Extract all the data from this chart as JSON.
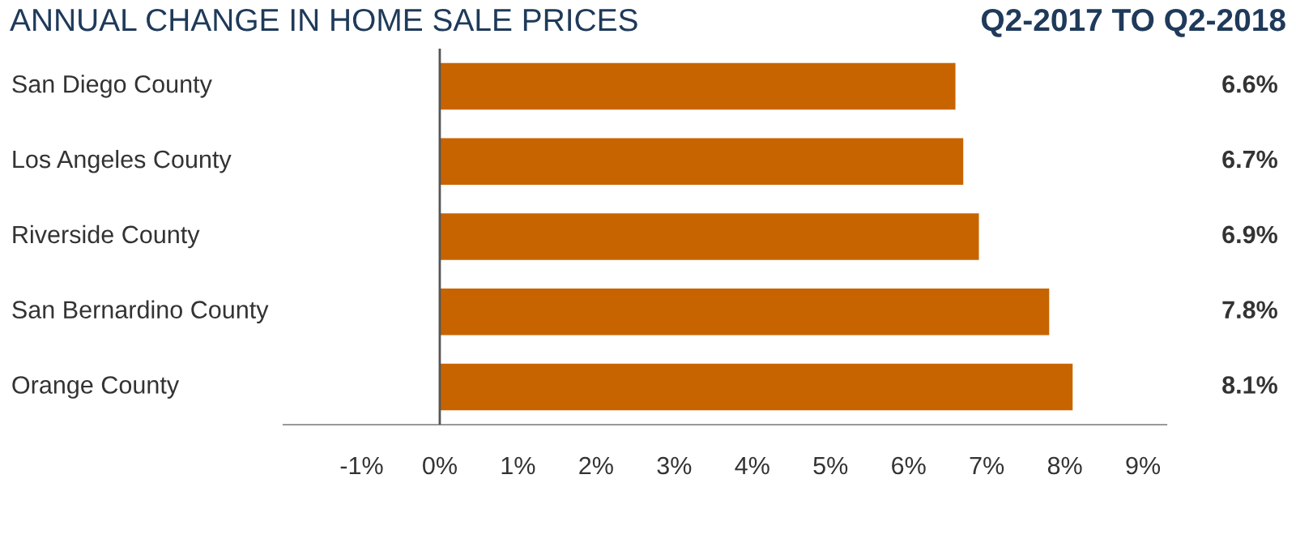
{
  "chart_data": {
    "type": "bar",
    "orientation": "horizontal",
    "title": "ANNUAL CHANGE IN HOME SALE PRICES",
    "subtitle": "Q2-2017 TO Q2-2018",
    "categories": [
      "San Diego County",
      "Los Angeles County",
      "Riverside County",
      "San Bernardino County",
      "Orange County"
    ],
    "values": [
      6.6,
      6.7,
      6.9,
      7.8,
      8.1
    ],
    "value_labels": [
      "6.6%",
      "6.7%",
      "6.9%",
      "7.8%",
      "8.1%"
    ],
    "color": "#c86400",
    "xlim": [
      -2,
      9.3
    ],
    "xticks": [
      {
        "value": -1,
        "label": "-1%"
      },
      {
        "value": 0,
        "label": "0%"
      },
      {
        "value": 1,
        "label": "1%"
      },
      {
        "value": 2,
        "label": "2%"
      },
      {
        "value": 3,
        "label": "3%"
      },
      {
        "value": 4,
        "label": "4%"
      },
      {
        "value": 5,
        "label": "5%"
      },
      {
        "value": 6,
        "label": "6%"
      },
      {
        "value": 7,
        "label": "7%"
      },
      {
        "value": 8,
        "label": "8%"
      },
      {
        "value": 9,
        "label": "9%"
      }
    ],
    "ref_lines": [
      {
        "axis": "x",
        "value": 0,
        "label": null,
        "color": "#555555"
      }
    ],
    "grid": false,
    "legend": false
  }
}
